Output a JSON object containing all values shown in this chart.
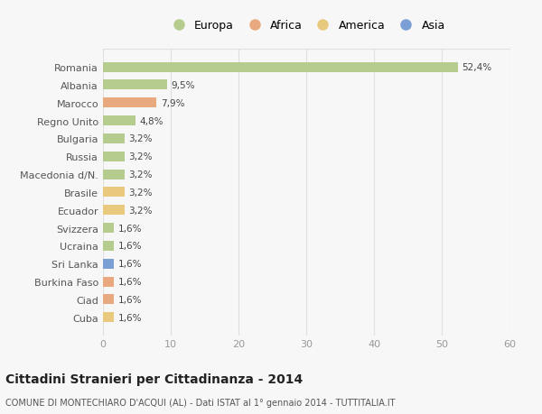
{
  "title": "Cittadini Stranieri per Cittadinanza - 2014",
  "subtitle": "COMUNE DI MONTECHIARO D'ACQUI (AL) - Dati ISTAT al 1° gennaio 2014 - TUTTITALIA.IT",
  "categories": [
    "Romania",
    "Albania",
    "Marocco",
    "Regno Unito",
    "Bulgaria",
    "Russia",
    "Macedonia d/N.",
    "Brasile",
    "Ecuador",
    "Svizzera",
    "Ucraina",
    "Sri Lanka",
    "Burkina Faso",
    "Ciad",
    "Cuba"
  ],
  "values": [
    52.4,
    9.5,
    7.9,
    4.8,
    3.2,
    3.2,
    3.2,
    3.2,
    3.2,
    1.6,
    1.6,
    1.6,
    1.6,
    1.6,
    1.6
  ],
  "labels": [
    "52,4%",
    "9,5%",
    "7,9%",
    "4,8%",
    "3,2%",
    "3,2%",
    "3,2%",
    "3,2%",
    "3,2%",
    "1,6%",
    "1,6%",
    "1,6%",
    "1,6%",
    "1,6%",
    "1,6%"
  ],
  "colors": [
    "#b5cc8e",
    "#b5cc8e",
    "#e8a97e",
    "#b5cc8e",
    "#b5cc8e",
    "#b5cc8e",
    "#b5cc8e",
    "#e8c97e",
    "#e8c97e",
    "#b5cc8e",
    "#b5cc8e",
    "#7b9fd4",
    "#e8a97e",
    "#e8a97e",
    "#e8c97e"
  ],
  "legend_entries": [
    {
      "label": "Europa",
      "color": "#b5cc8e"
    },
    {
      "label": "Africa",
      "color": "#e8a97e"
    },
    {
      "label": "America",
      "color": "#e8c97e"
    },
    {
      "label": "Asia",
      "color": "#7b9fd4"
    }
  ],
  "xlim": [
    0,
    60
  ],
  "xticks": [
    0,
    10,
    20,
    30,
    40,
    50,
    60
  ],
  "background_color": "#f7f7f7",
  "grid_color": "#e0e0e0",
  "bar_height": 0.55
}
